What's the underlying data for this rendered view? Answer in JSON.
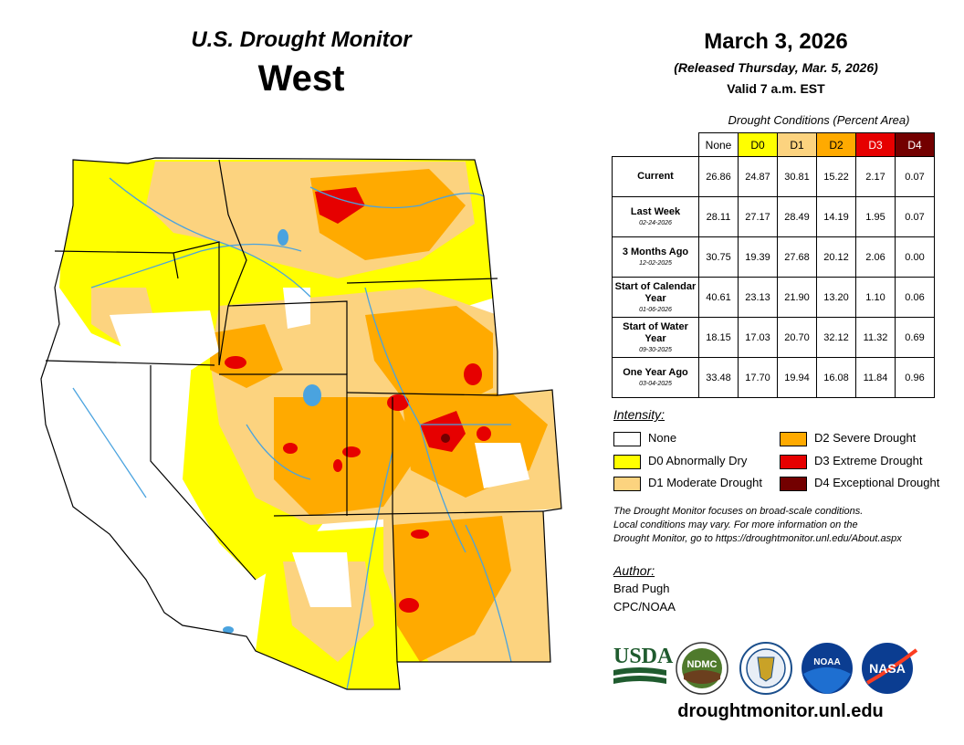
{
  "header": {
    "title": "U.S. Drought Monitor",
    "region": "West",
    "date": "March 3, 2026",
    "released": "(Released Thursday, Mar. 5, 2026)",
    "valid": "Valid 7 a.m. EST"
  },
  "table": {
    "title": "Drought Conditions (Percent Area)",
    "columns": [
      "None",
      "D0",
      "D1",
      "D2",
      "D3",
      "D4"
    ],
    "rows": [
      {
        "label": "Current",
        "sub": "",
        "values": [
          "26.86",
          "24.87",
          "30.81",
          "15.22",
          "2.17",
          "0.07"
        ]
      },
      {
        "label": "Last Week",
        "sub": "02-24-2026",
        "values": [
          "28.11",
          "27.17",
          "28.49",
          "14.19",
          "1.95",
          "0.07"
        ]
      },
      {
        "label": "3 Months Ago",
        "sub": "12-02-2025",
        "values": [
          "30.75",
          "19.39",
          "27.68",
          "20.12",
          "2.06",
          "0.00"
        ]
      },
      {
        "label": "Start of Calendar Year",
        "sub": "01-06-2026",
        "values": [
          "40.61",
          "23.13",
          "21.90",
          "13.20",
          "1.10",
          "0.06"
        ]
      },
      {
        "label": "Start of Water Year",
        "sub": "09-30-2025",
        "values": [
          "18.15",
          "17.03",
          "20.70",
          "32.12",
          "11.32",
          "0.69"
        ]
      },
      {
        "label": "One Year Ago",
        "sub": "03-04-2025",
        "values": [
          "33.48",
          "17.70",
          "19.94",
          "16.08",
          "11.84",
          "0.96"
        ]
      }
    ]
  },
  "legend": {
    "title": "Intensity:",
    "items": [
      {
        "label": "None",
        "color": "#ffffff"
      },
      {
        "label": "D0 Abnormally Dry",
        "color": "#ffff00"
      },
      {
        "label": "D1 Moderate Drought",
        "color": "#fcd37f"
      },
      {
        "label": "D2 Severe Drought",
        "color": "#ffaa00"
      },
      {
        "label": "D3 Extreme Drought",
        "color": "#e60000"
      },
      {
        "label": "D4 Exceptional Drought",
        "color": "#730000"
      }
    ]
  },
  "note": {
    "line1": "The Drought Monitor focuses on broad-scale conditions.",
    "line2": "Local conditions may vary. For more information on the",
    "line3": "Drought Monitor, go to https://droughtmonitor.unl.edu/About.aspx"
  },
  "author": {
    "title": "Author:",
    "name": "Brad Pugh",
    "org": "CPC/NOAA"
  },
  "logos": {
    "usda": "USDA",
    "ndmc": "NDMC",
    "noaa": "NOAA",
    "nasa": "NASA"
  },
  "footer": {
    "url": "droughtmonitor.unl.edu"
  },
  "colors": {
    "none": "#ffffff",
    "d0": "#ffff00",
    "d1": "#fcd37f",
    "d2": "#ffaa00",
    "d3": "#e60000",
    "d4": "#730000",
    "water": "#4aa3df"
  }
}
